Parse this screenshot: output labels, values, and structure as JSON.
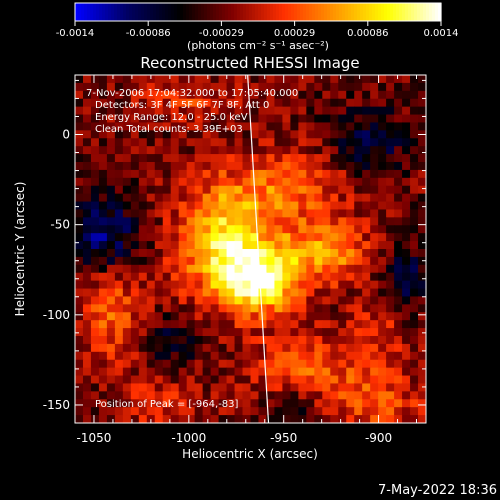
{
  "chart_data": {
    "type": "heatmap",
    "title": "Reconstructed RHESSI Image",
    "xlabel": "Heliocentric X (arcsec)",
    "ylabel": "Heliocentric Y (arcsec)",
    "xlim": [
      -1060,
      -875
    ],
    "ylim": [
      -160,
      33
    ],
    "xticks": [
      -1050,
      -1000,
      -950,
      -900
    ],
    "yticks": [
      -150,
      -100,
      -50,
      0
    ],
    "colorbar": {
      "ticks": [
        "-0.0014",
        "-0.00086",
        "-0.00029",
        "0.00029",
        "0.00086",
        "0.0014"
      ],
      "range": [
        -0.0014,
        0.0014
      ],
      "unit_label": "(photons cm⁻² s⁻¹ asec⁻²)",
      "colormap": [
        "#0000ff",
        "#000060",
        "#000000",
        "#800000",
        "#ff3000",
        "#ff9900",
        "#ffff00",
        "#ffffff"
      ]
    },
    "annotations": [
      "7-Nov-2006 17:04:32.000 to 17:05:40.000",
      "Detectors: 3F 4F 5F 6F 7F 8F, Att 0",
      "Energy Range: 12.0 - 25.0 keV",
      "Clean     Total counts: 3.39E+03"
    ],
    "peak_label": "Position of Peak = [-964,-83]",
    "peak": {
      "x": -964,
      "y": -83
    },
    "limb_line": [
      {
        "x": -969,
        "y": 33
      },
      {
        "x": -958,
        "y": -160
      }
    ],
    "sources": [
      {
        "x": -980,
        "y": -60,
        "sx": 18,
        "sy": 22,
        "amp": 0.0013
      },
      {
        "x": -962,
        "y": -82,
        "sx": 14,
        "sy": 12,
        "amp": 0.0013
      },
      {
        "x": -928,
        "y": -65,
        "sx": 16,
        "sy": 12,
        "amp": 0.0009
      },
      {
        "x": -945,
        "y": -28,
        "sx": 22,
        "sy": 14,
        "amp": 0.0006
      },
      {
        "x": -1040,
        "y": -100,
        "sx": 12,
        "sy": 18,
        "amp": 0.0006
      },
      {
        "x": -940,
        "y": -130,
        "sx": 20,
        "sy": 14,
        "amp": 0.0006
      },
      {
        "x": -900,
        "y": -150,
        "sx": 18,
        "sy": 14,
        "amp": 0.0005
      },
      {
        "x": -1015,
        "y": -150,
        "sx": 16,
        "sy": 10,
        "amp": 0.0004
      },
      {
        "x": -1000,
        "y": 20,
        "sx": 20,
        "sy": 8,
        "amp": 0.0004
      },
      {
        "x": -900,
        "y": -110,
        "sx": 10,
        "sy": 14,
        "amp": 0.00035
      },
      {
        "x": -1045,
        "y": -55,
        "sx": 14,
        "sy": 14,
        "amp": -0.0007
      },
      {
        "x": -905,
        "y": -5,
        "sx": 14,
        "sy": 14,
        "amp": -0.0005
      },
      {
        "x": -885,
        "y": -80,
        "sx": 10,
        "sy": 12,
        "amp": -0.0005
      },
      {
        "x": -945,
        "y": -155,
        "sx": 10,
        "sy": 10,
        "amp": -0.0005
      },
      {
        "x": -1010,
        "y": -115,
        "sx": 10,
        "sy": 10,
        "amp": -0.0004
      }
    ]
  },
  "footer_date": "7-May-2022 18:36"
}
